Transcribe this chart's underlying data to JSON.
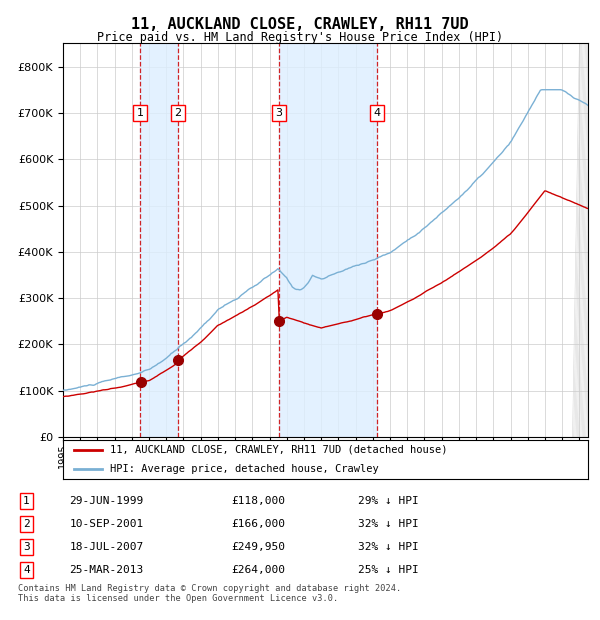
{
  "title": "11, AUCKLAND CLOSE, CRAWLEY, RH11 7UD",
  "subtitle": "Price paid vs. HM Land Registry's House Price Index (HPI)",
  "footer": "Contains HM Land Registry data © Crown copyright and database right 2024.\nThis data is licensed under the Open Government Licence v3.0.",
  "legend_line1": "11, AUCKLAND CLOSE, CRAWLEY, RH11 7UD (detached house)",
  "legend_line2": "HPI: Average price, detached house, Crawley",
  "transactions": [
    {
      "num": 1,
      "date": "29-JUN-1999",
      "price": 118000,
      "pct": "29%",
      "year": 1999.49
    },
    {
      "num": 2,
      "date": "10-SEP-2001",
      "price": 166000,
      "pct": "32%",
      "year": 2001.69
    },
    {
      "num": 3,
      "date": "18-JUL-2007",
      "price": 249950,
      "pct": "32%",
      "year": 2007.54
    },
    {
      "num": 4,
      "date": "25-MAR-2013",
      "price": 264000,
      "pct": "25%",
      "year": 2013.23
    }
  ],
  "hpi_color": "#7ab0d4",
  "price_color": "#cc0000",
  "dot_color": "#990000",
  "vline_color": "#cc0000",
  "shade_color": "#ddeeff",
  "background_color": "#ffffff",
  "grid_color": "#cccccc",
  "ylim": [
    0,
    850000
  ],
  "yticks": [
    0,
    100000,
    200000,
    300000,
    400000,
    500000,
    600000,
    700000,
    800000
  ],
  "xmin": 1995,
  "xmax": 2025.5
}
